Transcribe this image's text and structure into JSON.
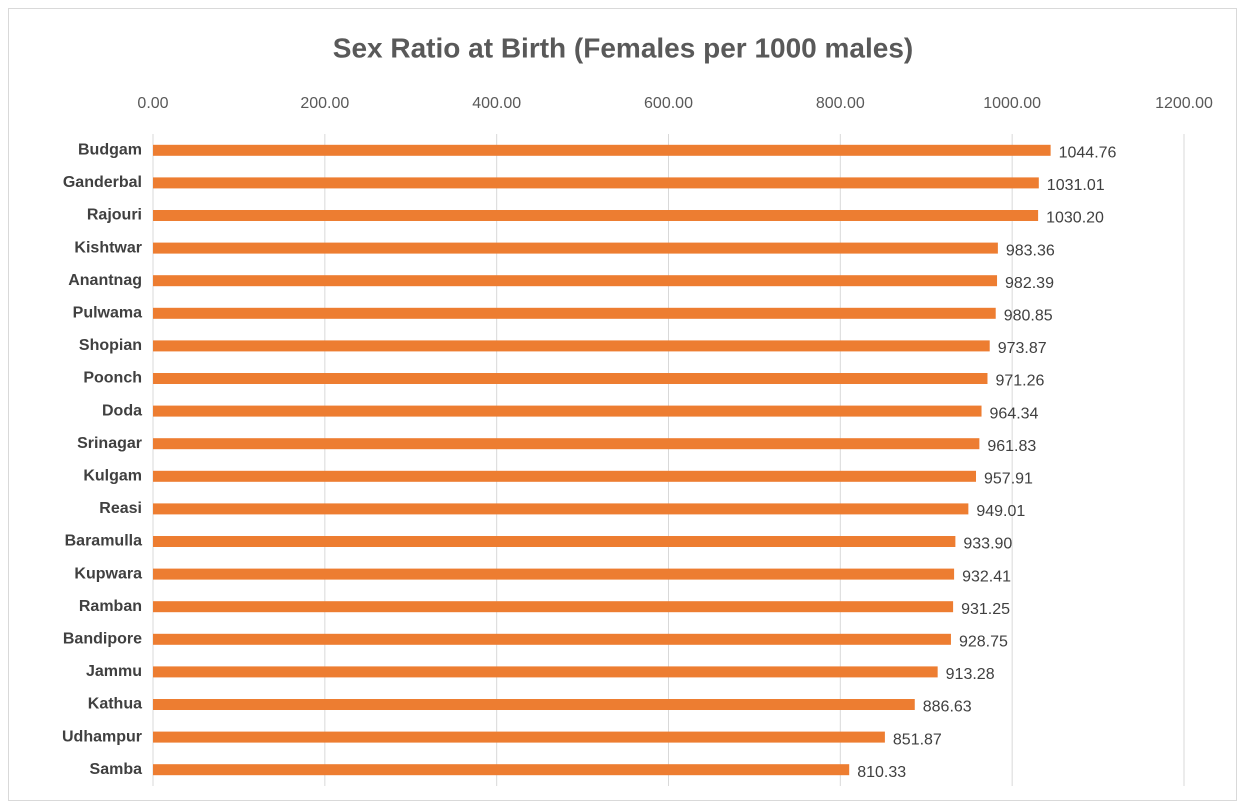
{
  "chart_data": {
    "type": "barh",
    "title": "Sex Ratio at Birth (Females per 1000 males)",
    "categories": [
      "Budgam",
      "Ganderbal",
      "Rajouri",
      "Kishtwar",
      "Anantnag",
      "Pulwama",
      "Shopian",
      "Poonch",
      "Doda",
      "Srinagar",
      "Kulgam",
      "Reasi",
      "Baramulla",
      "Kupwara",
      "Ramban",
      "Bandipore",
      "Jammu",
      "Kathua",
      "Udhampur",
      "Samba"
    ],
    "values": [
      1044.76,
      1031.01,
      1030.2,
      983.36,
      982.39,
      980.85,
      973.87,
      971.26,
      964.34,
      961.83,
      957.91,
      949.01,
      933.9,
      932.41,
      931.25,
      928.75,
      913.28,
      886.63,
      851.87,
      810.33
    ],
    "value_labels": [
      "1044.76",
      "1031.01",
      "1030.20",
      "983.36",
      "982.39",
      "980.85",
      "973.87",
      "971.26",
      "964.34",
      "961.83",
      "957.91",
      "949.01",
      "933.90",
      "932.41",
      "931.25",
      "928.75",
      "913.28",
      "886.63",
      "851.87",
      "810.33"
    ],
    "color": "#ed7d31",
    "xlim": [
      0,
      1200
    ],
    "xticks": [
      {
        "value": 0,
        "label": "0.00"
      },
      {
        "value": 200,
        "label": "200.00"
      },
      {
        "value": 400,
        "label": "400.00"
      },
      {
        "value": 600,
        "label": "600.00"
      },
      {
        "value": 800,
        "label": "800.00"
      },
      {
        "value": 1000,
        "label": "1000.00"
      },
      {
        "value": 1200,
        "label": "1200.00"
      }
    ],
    "grid": true
  }
}
